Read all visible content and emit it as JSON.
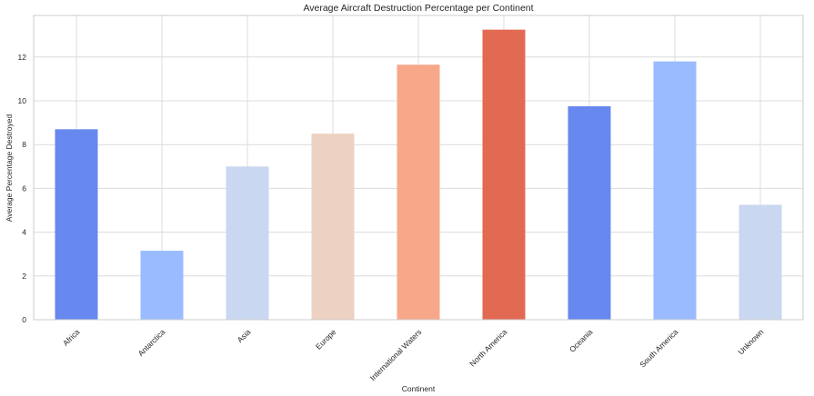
{
  "chart_data": {
    "type": "bar",
    "title": "Average Aircraft Destruction Percentage per Continent",
    "xlabel": "Continent",
    "ylabel": "Average Percentage Destroyed",
    "categories": [
      "Africa",
      "Antarctica",
      "Asia",
      "Europe",
      "International Waters",
      "North America",
      "Oceania",
      "South America",
      "Unknown"
    ],
    "values": [
      8.7,
      3.15,
      7.0,
      8.5,
      11.65,
      13.25,
      9.75,
      11.8,
      5.25
    ],
    "colors": [
      "#6788ee",
      "#9abbff",
      "#c9d7f0",
      "#edd1c2",
      "#f7a889",
      "#e26952",
      "#6788ee",
      "#9abbff",
      "#c9d7f0"
    ],
    "yticks": [
      0,
      2,
      4,
      6,
      8,
      10,
      12
    ],
    "ylim": [
      0,
      13.9
    ],
    "grid": true,
    "legend": "none"
  }
}
